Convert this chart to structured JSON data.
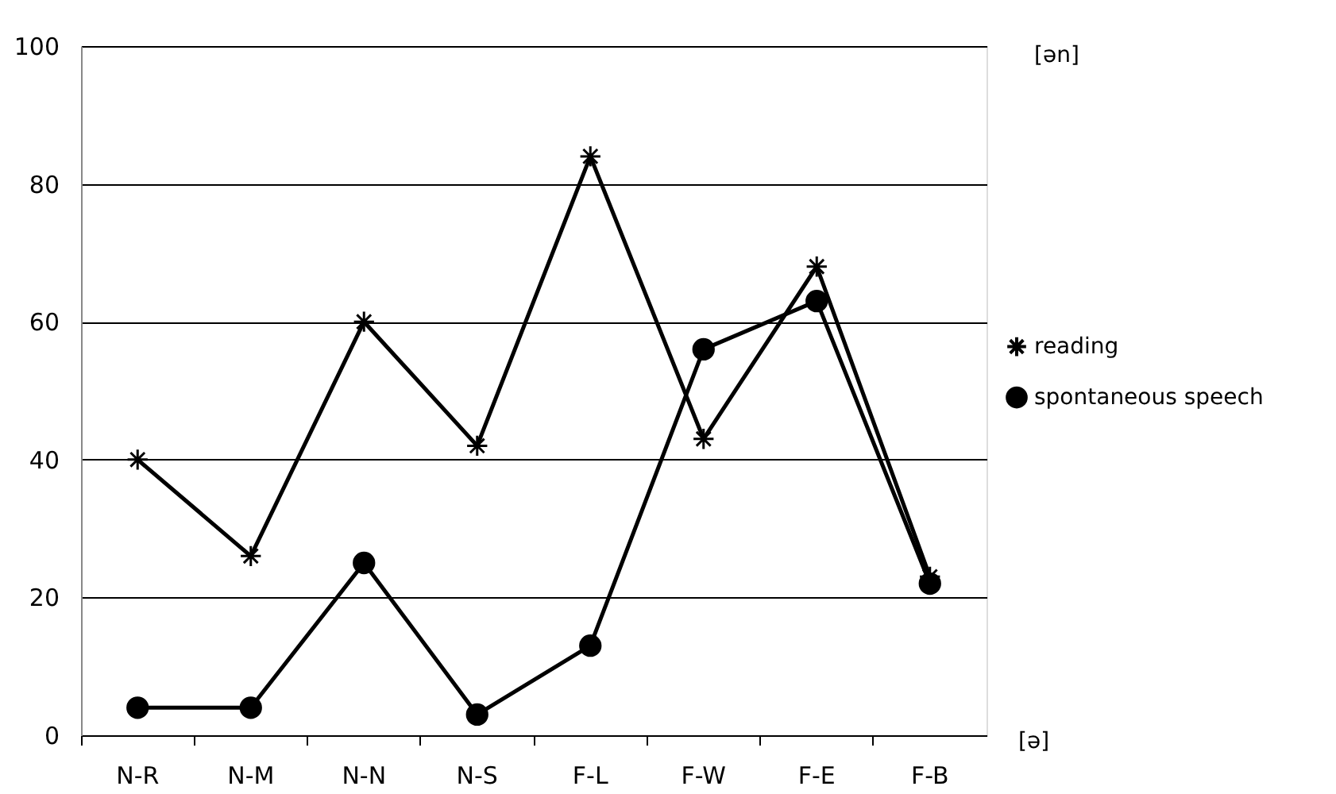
{
  "chart_data": {
    "type": "line",
    "categories": [
      "N-R",
      "N-M",
      "N-N",
      "N-S",
      "F-L",
      "F-W",
      "F-E",
      "F-B"
    ],
    "series": [
      {
        "name": "reading",
        "color": "#000000",
        "marker": "cross",
        "values": [
          40,
          26,
          60,
          42,
          84,
          43,
          68,
          23
        ]
      },
      {
        "name": "spontaneous speech",
        "color": "#000000",
        "marker": "circle",
        "values": [
          4,
          4,
          25,
          3,
          13,
          56,
          63,
          22
        ]
      }
    ],
    "ylim": [
      0,
      100
    ],
    "yticks": [
      0,
      20,
      40,
      60,
      80,
      100
    ],
    "grid": "y",
    "legend": "right",
    "line_style": "solid",
    "annotations": [
      "[ən]",
      "[ə]"
    ]
  }
}
